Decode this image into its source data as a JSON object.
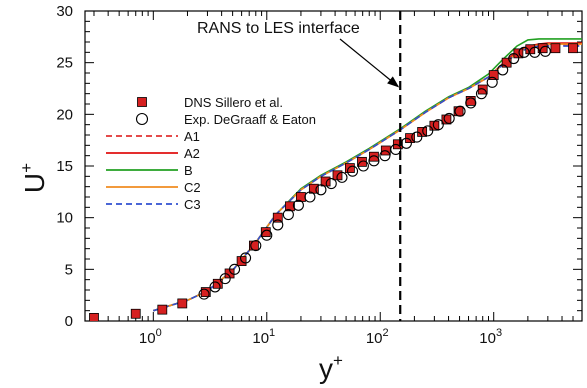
{
  "chart_data": {
    "type": "line",
    "x_scale": "log",
    "xlim": [
      0.25,
      6000
    ],
    "ylim": [
      0,
      30
    ],
    "x_ticks": [
      1,
      10,
      100,
      1000
    ],
    "x_tick_labels": [
      "10",
      "10",
      "10",
      "10"
    ],
    "x_tick_exponents": [
      "0",
      "1",
      "2",
      "3"
    ],
    "y_ticks": [
      0,
      5,
      10,
      15,
      20,
      25,
      30
    ],
    "y_tick_labels": [
      "0",
      "5",
      "10",
      "15",
      "20",
      "25",
      "30"
    ],
    "xlabel": "y",
    "xlabel_sup": "+",
    "ylabel": "U",
    "ylabel_sup": "+",
    "grid": false,
    "legend_position": "left-middle",
    "annotation": {
      "text": "RANS to LES interface",
      "x": 150,
      "arrow_target_y": 22.5
    },
    "series": [
      {
        "name": "DNS Sillero et al.",
        "marker": "square",
        "color": "#d62020",
        "x": [
          0.3,
          0.7,
          1.2,
          1.8,
          2.9,
          3.7,
          4.7,
          6.0,
          7.7,
          9.8,
          12.5,
          16,
          20,
          26,
          33,
          42,
          54,
          69,
          88,
          112,
          143,
          183,
          234,
          300,
          383,
          490,
          627,
          800,
          1000,
          1300,
          1650,
          2100,
          2700,
          3500,
          5000
        ],
        "y": [
          0.3,
          0.7,
          1.1,
          1.7,
          2.8,
          3.6,
          4.6,
          5.8,
          7.3,
          8.6,
          10.0,
          11.1,
          12.0,
          12.8,
          13.5,
          14.1,
          14.8,
          15.4,
          15.9,
          16.5,
          17.1,
          17.7,
          18.3,
          18.9,
          19.5,
          20.3,
          21.3,
          22.4,
          23.8,
          25.0,
          25.9,
          26.3,
          26.4,
          26.4,
          26.4
        ]
      },
      {
        "name": "Exp. DeGraaff & Eaton",
        "marker": "open-circle",
        "color": "#000000",
        "x": [
          2.8,
          3.5,
          4.3,
          5.2,
          6.5,
          8.0,
          10,
          12.5,
          15.5,
          19,
          24,
          30,
          37,
          46,
          57,
          71,
          88,
          110,
          137,
          170,
          210,
          262,
          325,
          405,
          505,
          628,
          780,
          970,
          1200,
          1500,
          1850,
          2300,
          2850
        ],
        "y": [
          2.6,
          3.3,
          4.1,
          5.0,
          6.1,
          7.3,
          8.3,
          9.3,
          10.3,
          11.2,
          12.0,
          12.7,
          13.3,
          13.9,
          14.5,
          15.0,
          15.5,
          16.0,
          16.6,
          17.2,
          17.8,
          18.4,
          19.0,
          19.6,
          20.3,
          21.1,
          22.0,
          23.1,
          24.3,
          25.4,
          26.0,
          26.0,
          26.1
        ]
      },
      {
        "name": "A1",
        "line": "dashed",
        "color": "#e03030",
        "x": [
          1,
          2,
          3,
          5,
          8,
          12,
          20,
          30,
          50,
          80,
          150,
          250,
          400,
          600,
          900,
          1200,
          1600,
          2000,
          2500,
          3000,
          4000,
          6000
        ],
        "y": [
          1,
          2,
          2.9,
          4.9,
          7.6,
          10.3,
          12.7,
          14.0,
          15.3,
          16.6,
          18.5,
          20.2,
          21.6,
          22.5,
          23.6,
          24.8,
          25.9,
          26.4,
          26.6,
          26.65,
          26.7,
          26.7
        ]
      },
      {
        "name": "A2",
        "line": "solid",
        "color": "#e01010",
        "x": [
          1,
          2,
          3,
          5,
          8,
          12,
          20,
          30,
          50,
          80,
          150,
          250,
          400,
          600,
          900,
          1200,
          1600,
          2000,
          2500,
          3000,
          4000,
          6000
        ],
        "y": [
          1,
          2,
          2.9,
          4.9,
          7.6,
          10.3,
          12.7,
          14.0,
          15.3,
          16.6,
          18.5,
          20.2,
          21.6,
          22.5,
          23.6,
          24.9,
          26.1,
          26.6,
          26.8,
          26.9,
          26.9,
          26.9
        ]
      },
      {
        "name": "B",
        "line": "solid",
        "color": "#22a022",
        "x": [
          1,
          2,
          3,
          5,
          8,
          12,
          20,
          30,
          50,
          80,
          150,
          250,
          400,
          600,
          900,
          1200,
          1600,
          2000,
          2500,
          3000,
          4000,
          6000
        ],
        "y": [
          1,
          2,
          2.9,
          4.9,
          7.6,
          10.3,
          12.8,
          14.1,
          15.4,
          16.7,
          18.6,
          20.3,
          21.7,
          22.6,
          23.9,
          25.3,
          26.6,
          27.2,
          27.3,
          27.3,
          27.3,
          27.3
        ]
      },
      {
        "name": "C2",
        "line": "solid",
        "color": "#f08c20",
        "x": [
          1,
          2,
          3,
          5,
          8,
          12,
          20,
          30,
          50,
          80,
          150,
          250,
          400,
          600,
          900,
          1200,
          1600,
          2000,
          2500,
          3000,
          4000,
          6000
        ],
        "y": [
          1,
          2,
          2.9,
          4.9,
          7.6,
          10.3,
          12.7,
          14.0,
          15.3,
          16.6,
          18.5,
          20.2,
          21.6,
          22.5,
          23.6,
          24.8,
          25.9,
          26.5,
          26.7,
          26.8,
          26.8,
          26.8
        ]
      },
      {
        "name": "C3",
        "line": "dashed",
        "color": "#3050d0",
        "x": [
          1,
          2,
          3,
          5,
          8,
          12,
          20,
          30,
          50,
          80,
          150,
          250,
          400,
          600,
          900,
          1200,
          1600,
          2000,
          2500,
          3000,
          4000,
          6000
        ],
        "y": [
          1,
          2,
          2.9,
          4.9,
          7.6,
          10.3,
          12.7,
          14.0,
          15.3,
          16.6,
          18.5,
          20.2,
          21.6,
          22.5,
          23.6,
          24.8,
          25.9,
          26.4,
          26.6,
          26.6,
          26.6,
          26.6
        ]
      }
    ]
  }
}
